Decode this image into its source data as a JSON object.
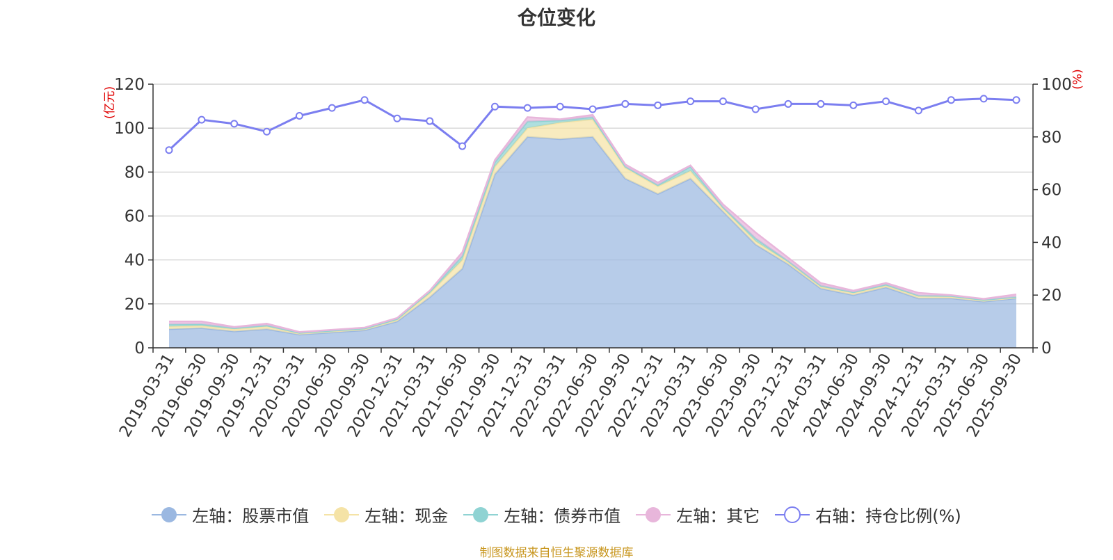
{
  "chart_data": {
    "type": "area",
    "title": "仓位变化",
    "left_axis_unit": "(亿元)",
    "right_axis_unit": "(%)",
    "ylim_left": [
      0,
      120
    ],
    "ylim_right": [
      0,
      100
    ],
    "left_ticks": [
      0,
      20,
      40,
      60,
      80,
      100,
      120
    ],
    "right_ticks": [
      0,
      20,
      40,
      60,
      80,
      100
    ],
    "x": [
      "2019-03-31",
      "2019-06-30",
      "2019-09-30",
      "2019-12-31",
      "2020-03-31",
      "2020-06-30",
      "2020-09-30",
      "2020-12-31",
      "2021-03-31",
      "2021-06-30",
      "2021-09-30",
      "2021-12-31",
      "2022-03-31",
      "2022-06-30",
      "2022-09-30",
      "2022-12-31",
      "2023-03-31",
      "2023-06-30",
      "2023-09-30",
      "2023-12-31",
      "2024-03-31",
      "2024-06-30",
      "2024-09-30",
      "2024-12-31",
      "2025-03-31",
      "2025-06-30",
      "2025-09-30"
    ],
    "series": [
      {
        "name": "左轴：股票市值",
        "axis": "left",
        "stacked": true,
        "color": "#9bb8e1",
        "values": [
          8.5,
          9.0,
          7.5,
          8.5,
          6.0,
          7.0,
          8.0,
          12.0,
          23.0,
          36.0,
          79.0,
          96.0,
          95.0,
          96.0,
          77.0,
          70.0,
          77.0,
          62.0,
          47.0,
          38.0,
          27.0,
          24.0,
          27.5,
          22.5,
          22.5,
          21.0,
          22.5
        ]
      },
      {
        "name": "左轴：现金",
        "axis": "left",
        "stacked": true,
        "color": "#f5e3a6",
        "values": [
          1.2,
          1.0,
          1.0,
          1.2,
          0.6,
          0.6,
          0.6,
          0.8,
          1.8,
          4.0,
          3.5,
          4.0,
          7.5,
          8.0,
          5.0,
          3.5,
          3.5,
          1.5,
          1.5,
          1.0,
          0.8,
          1.0,
          0.8,
          1.0,
          0.8,
          0.5,
          0.4
        ]
      },
      {
        "name": "左轴：债券市值",
        "axis": "left",
        "stacked": true,
        "color": "#8fd3d3",
        "values": [
          1.0,
          0.8,
          0.5,
          0.5,
          0.2,
          0.2,
          0.2,
          0.3,
          0.8,
          1.8,
          2.0,
          3.0,
          1.0,
          1.0,
          0.5,
          0.6,
          2.0,
          0.5,
          1.3,
          0.5,
          0.5,
          0.3,
          0.5,
          0.3,
          0.3,
          0.3,
          0.3
        ]
      },
      {
        "name": "左轴：其它",
        "axis": "left",
        "stacked": true,
        "color": "#e8b6db",
        "values": [
          1.3,
          1.2,
          0.5,
          0.8,
          0.4,
          0.4,
          0.4,
          0.5,
          0.4,
          1.7,
          1.0,
          2.0,
          0.5,
          1.0,
          1.0,
          1.1,
          0.5,
          1.3,
          2.7,
          1.5,
          1.2,
          0.7,
          0.7,
          1.2,
          0.4,
          0.5,
          1.1
        ]
      },
      {
        "name": "右轴：持仓比例(%)",
        "axis": "right",
        "stacked": false,
        "color": "#7b7ef0",
        "values": [
          75.0,
          86.5,
          85.0,
          82.0,
          88.0,
          91.0,
          94.0,
          87.0,
          86.0,
          76.5,
          91.5,
          91.0,
          91.5,
          90.5,
          92.5,
          92.0,
          93.5,
          93.5,
          90.5,
          92.5,
          92.5,
          92.0,
          93.5,
          90.0,
          94.0,
          94.5,
          94.0
        ]
      }
    ]
  },
  "source_text": "制图数据来自恒生聚源数据库"
}
